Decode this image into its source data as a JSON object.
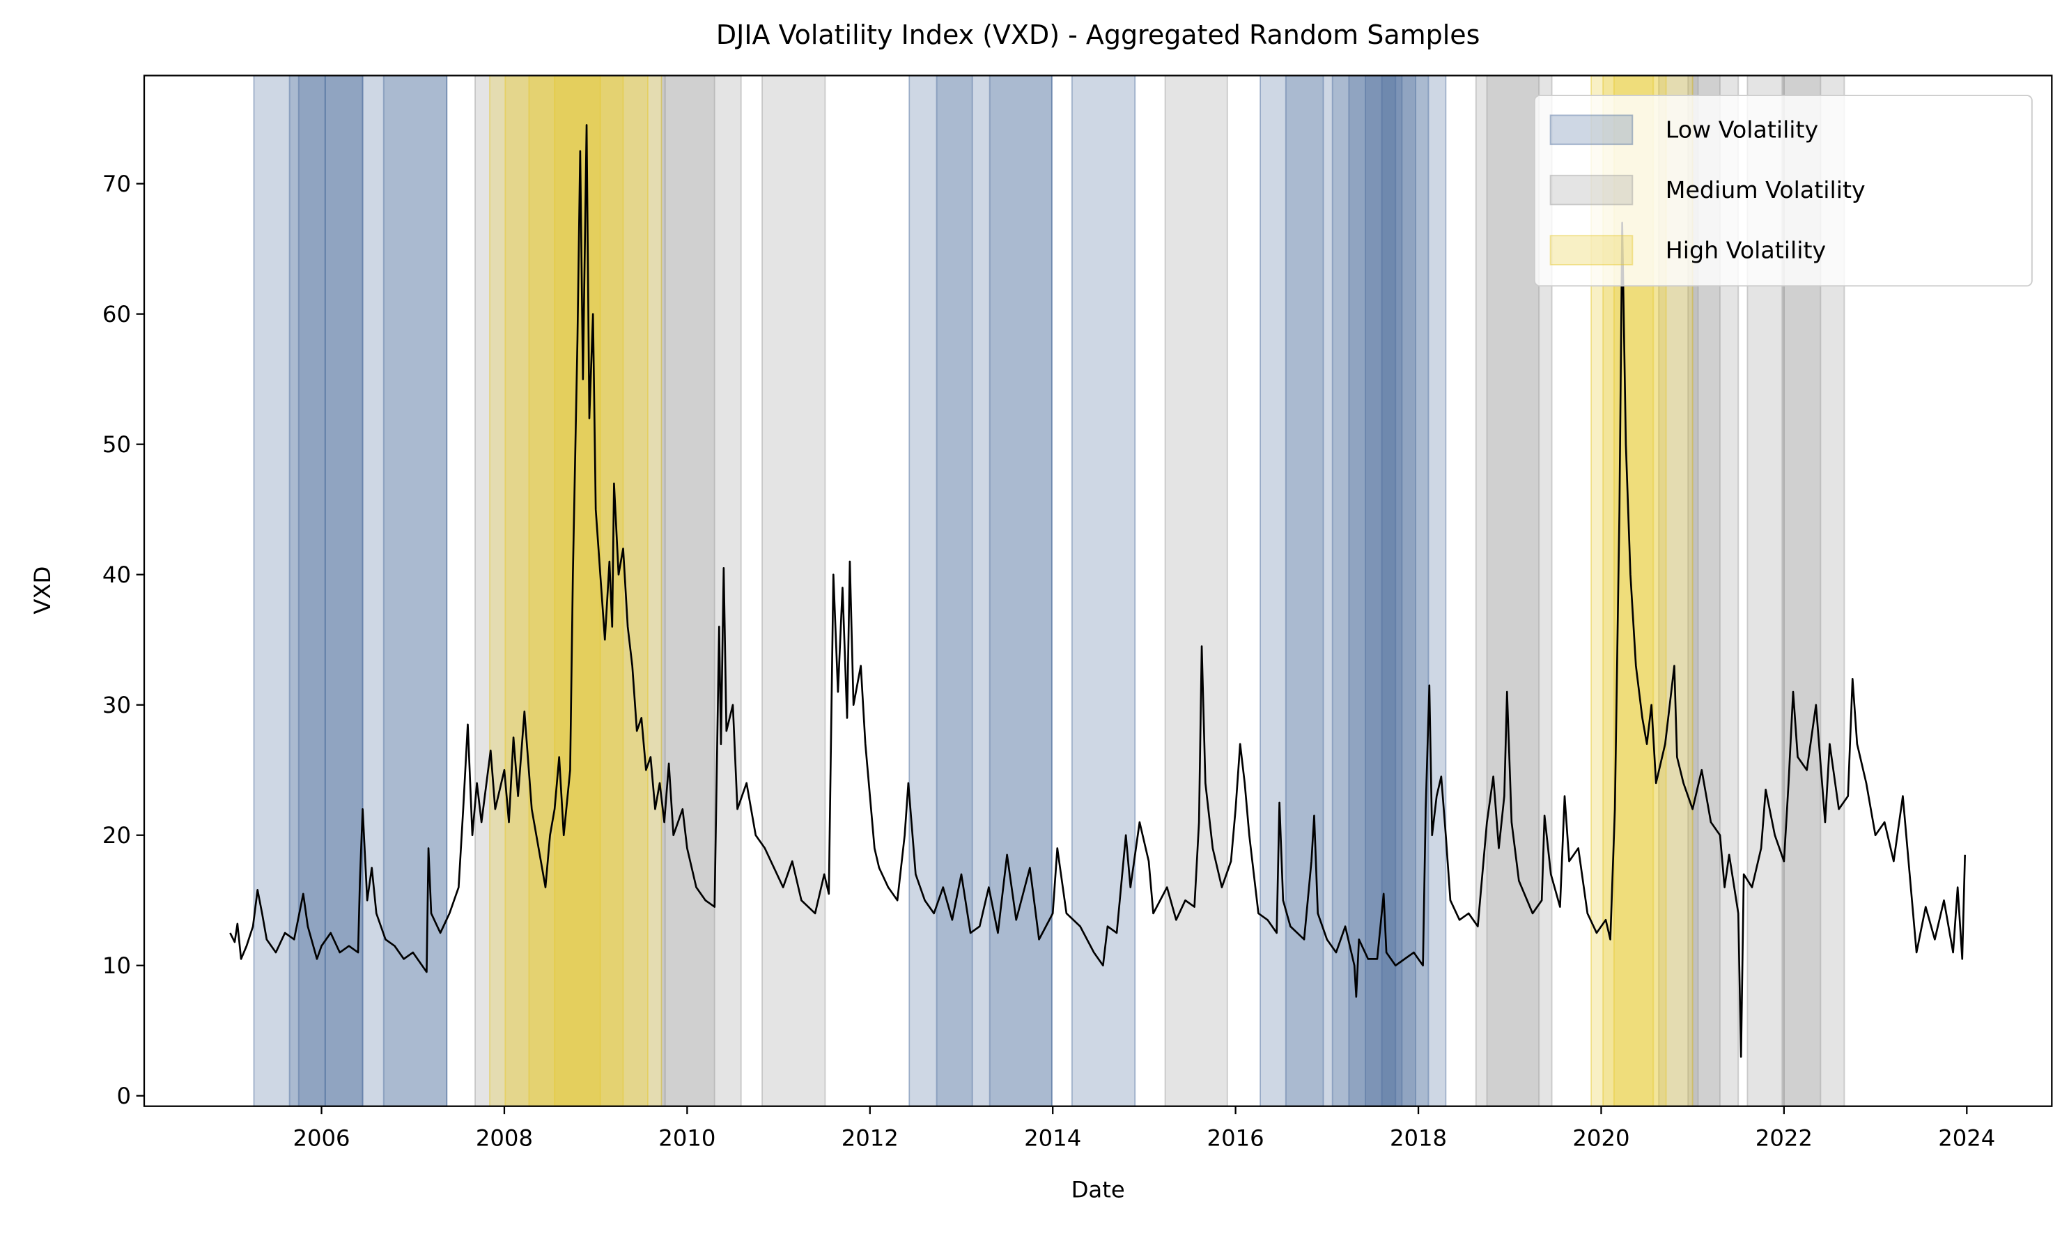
{
  "chart_data": {
    "type": "line",
    "title": "DJIA Volatility Index (VXD) - Aggregated Random Samples",
    "xlabel": "Date",
    "ylabel": "VXD",
    "color": "#000000",
    "x": [
      2005.0,
      2005.05,
      2005.08,
      2005.12,
      2005.18,
      2005.25,
      2005.3,
      2005.35,
      2005.4,
      2005.5,
      2005.6,
      2005.7,
      2005.8,
      2005.85,
      2005.95,
      2006.0,
      2006.1,
      2006.2,
      2006.3,
      2006.4,
      2006.42,
      2006.45,
      2006.5,
      2006.55,
      2006.6,
      2006.7,
      2006.8,
      2006.9,
      2007.0,
      2007.1,
      2007.15,
      2007.17,
      2007.2,
      2007.3,
      2007.4,
      2007.5,
      2007.55,
      2007.6,
      2007.65,
      2007.7,
      2007.75,
      2007.85,
      2007.9,
      2008.0,
      2008.05,
      2008.1,
      2008.15,
      2008.22,
      2008.3,
      2008.4,
      2008.45,
      2008.5,
      2008.55,
      2008.6,
      2008.65,
      2008.72,
      2008.75,
      2008.8,
      2008.83,
      2008.86,
      2008.9,
      2008.93,
      2008.97,
      2009.0,
      2009.05,
      2009.1,
      2009.15,
      2009.18,
      2009.2,
      2009.25,
      2009.3,
      2009.35,
      2009.4,
      2009.45,
      2009.5,
      2009.55,
      2009.6,
      2009.65,
      2009.7,
      2009.75,
      2009.8,
      2009.85,
      2009.95,
      2010.0,
      2010.1,
      2010.2,
      2010.3,
      2010.35,
      2010.37,
      2010.4,
      2010.43,
      2010.5,
      2010.55,
      2010.65,
      2010.75,
      2010.85,
      2010.95,
      2011.05,
      2011.15,
      2011.25,
      2011.4,
      2011.5,
      2011.55,
      2011.6,
      2011.65,
      2011.7,
      2011.75,
      2011.78,
      2011.82,
      2011.9,
      2011.95,
      2012.0,
      2012.05,
      2012.1,
      2012.2,
      2012.3,
      2012.38,
      2012.42,
      2012.5,
      2012.6,
      2012.7,
      2012.8,
      2012.9,
      2013.0,
      2013.1,
      2013.2,
      2013.3,
      2013.4,
      2013.5,
      2013.6,
      2013.75,
      2013.85,
      2014.0,
      2014.05,
      2014.15,
      2014.3,
      2014.45,
      2014.55,
      2014.6,
      2014.7,
      2014.8,
      2014.85,
      2014.95,
      2015.05,
      2015.1,
      2015.25,
      2015.35,
      2015.45,
      2015.55,
      2015.6,
      2015.63,
      2015.67,
      2015.75,
      2015.85,
      2015.95,
      2016.0,
      2016.05,
      2016.1,
      2016.15,
      2016.25,
      2016.35,
      2016.45,
      2016.48,
      2016.52,
      2016.6,
      2016.75,
      2016.83,
      2016.86,
      2016.9,
      2017.0,
      2017.1,
      2017.2,
      2017.3,
      2017.32,
      2017.35,
      2017.45,
      2017.55,
      2017.62,
      2017.65,
      2017.75,
      2017.85,
      2017.95,
      2018.05,
      2018.08,
      2018.12,
      2018.15,
      2018.2,
      2018.25,
      2018.3,
      2018.35,
      2018.45,
      2018.55,
      2018.65,
      2018.75,
      2018.82,
      2018.88,
      2018.94,
      2018.97,
      2019.02,
      2019.1,
      2019.25,
      2019.35,
      2019.38,
      2019.45,
      2019.55,
      2019.6,
      2019.65,
      2019.75,
      2019.85,
      2019.95,
      2020.05,
      2020.1,
      2020.15,
      2020.2,
      2020.23,
      2020.27,
      2020.32,
      2020.38,
      2020.45,
      2020.5,
      2020.55,
      2020.6,
      2020.7,
      2020.8,
      2020.83,
      2020.9,
      2021.0,
      2021.1,
      2021.2,
      2021.3,
      2021.35,
      2021.4,
      2021.5,
      2021.53,
      2021.56,
      2021.65,
      2021.75,
      2021.8,
      2021.9,
      2022.0,
      2022.05,
      2022.1,
      2022.15,
      2022.25,
      2022.35,
      2022.45,
      2022.5,
      2022.6,
      2022.7,
      2022.75,
      2022.8,
      2022.9,
      2023.0,
      2023.1,
      2023.2,
      2023.3,
      2023.4,
      2023.45,
      2023.55,
      2023.65,
      2023.75,
      2023.85,
      2023.9,
      2023.95,
      2023.98
    ],
    "values": [
      12.5,
      11.8,
      13.2,
      10.5,
      11.5,
      13.0,
      15.8,
      14.0,
      12.0,
      11.0,
      12.5,
      12.0,
      15.5,
      13.0,
      10.5,
      11.5,
      12.5,
      11.0,
      11.5,
      11.0,
      16.5,
      22.0,
      15.0,
      17.5,
      14.0,
      12.0,
      11.5,
      10.5,
      11.0,
      10.0,
      9.5,
      19.0,
      14.0,
      12.5,
      14.0,
      16.0,
      22.0,
      28.5,
      20.0,
      24.0,
      21.0,
      26.5,
      22.0,
      25.0,
      21.0,
      27.5,
      23.0,
      29.5,
      22.0,
      18.0,
      16.0,
      20.0,
      22.0,
      26.0,
      20.0,
      25.0,
      40.0,
      58.0,
      72.5,
      55.0,
      74.5,
      52.0,
      60.0,
      45.0,
      40.0,
      35.0,
      41.0,
      36.0,
      47.0,
      40.0,
      42.0,
      36.0,
      33.0,
      28.0,
      29.0,
      25.0,
      26.0,
      22.0,
      24.0,
      21.0,
      25.5,
      20.0,
      22.0,
      19.0,
      16.0,
      15.0,
      14.5,
      36.0,
      27.0,
      40.5,
      28.0,
      30.0,
      22.0,
      24.0,
      20.0,
      19.0,
      17.5,
      16.0,
      18.0,
      15.0,
      14.0,
      17.0,
      15.5,
      40.0,
      31.0,
      39.0,
      29.0,
      41.0,
      30.0,
      33.0,
      27.0,
      23.0,
      19.0,
      17.5,
      16.0,
      15.0,
      20.0,
      24.0,
      17.0,
      15.0,
      14.0,
      16.0,
      13.5,
      17.0,
      12.5,
      13.0,
      16.0,
      12.5,
      18.5,
      13.5,
      17.5,
      12.0,
      14.0,
      19.0,
      14.0,
      13.0,
      11.0,
      10.0,
      13.0,
      12.5,
      20.0,
      16.0,
      21.0,
      18.0,
      14.0,
      16.0,
      13.5,
      15.0,
      14.5,
      21.0,
      34.5,
      24.0,
      19.0,
      16.0,
      18.0,
      22.0,
      27.0,
      24.0,
      20.0,
      14.0,
      13.5,
      12.5,
      22.5,
      15.0,
      13.0,
      12.0,
      18.0,
      21.5,
      14.0,
      12.0,
      11.0,
      13.0,
      10.0,
      7.6,
      12.0,
      10.5,
      10.5,
      15.5,
      11.0,
      10.0,
      10.5,
      11.0,
      10.0,
      22.0,
      31.5,
      20.0,
      23.0,
      24.5,
      20.0,
      15.0,
      13.5,
      14.0,
      13.0,
      21.0,
      24.5,
      19.0,
      23.0,
      31.0,
      21.0,
      16.5,
      14.0,
      15.0,
      21.5,
      17.0,
      14.5,
      23.0,
      18.0,
      19.0,
      14.0,
      12.5,
      13.5,
      12.0,
      22.0,
      45.0,
      67.0,
      50.0,
      40.0,
      33.0,
      29.0,
      27.0,
      30.0,
      24.0,
      27.0,
      33.0,
      26.0,
      24.0,
      22.0,
      25.0,
      21.0,
      20.0,
      16.0,
      18.5,
      14.0,
      3.0,
      17.0,
      16.0,
      19.0,
      23.5,
      20.0,
      18.0,
      24.0,
      31.0,
      26.0,
      25.0,
      30.0,
      21.0,
      27.0,
      22.0,
      23.0,
      32.0,
      27.0,
      24.0,
      20.0,
      21.0,
      18.0,
      23.0,
      15.0,
      11.0,
      14.5,
      12.0,
      15.0,
      11.0,
      16.0,
      10.5,
      18.5
    ],
    "spans": [
      {
        "name": "Low Volatility",
        "color": "#4a6a9c",
        "ranges": [
          [
            2005.26,
            2007.37
          ],
          [
            2005.65,
            2006.45
          ],
          [
            2005.75,
            2006.04
          ],
          [
            2006.04,
            2006.45
          ],
          [
            2006.68,
            2007.37
          ],
          [
            2012.43,
            2013.99
          ],
          [
            2012.73,
            2013.12
          ],
          [
            2013.31,
            2013.99
          ],
          [
            2014.21,
            2014.9
          ],
          [
            2016.27,
            2018.3
          ],
          [
            2016.55,
            2016.96
          ],
          [
            2017.06,
            2018.11
          ],
          [
            2017.24,
            2017.97
          ],
          [
            2017.42,
            2017.82
          ],
          [
            2017.6,
            2017.75
          ]
        ]
      },
      {
        "name": "Medium Volatility",
        "color": "#9a9a9a",
        "ranges": [
          [
            2007.68,
            2009.75
          ],
          [
            2009.72,
            2010.59
          ],
          [
            2009.76,
            2010.3
          ],
          [
            2010.82,
            2011.51
          ],
          [
            2015.23,
            2015.91
          ],
          [
            2018.63,
            2019.46
          ],
          [
            2018.75,
            2019.32
          ],
          [
            2020.63,
            2021.06
          ],
          [
            2020.95,
            2021.5
          ],
          [
            2021.0,
            2021.3
          ],
          [
            2021.6,
            2022.0
          ],
          [
            2021.98,
            2022.66
          ],
          [
            2022.0,
            2022.4
          ]
        ]
      },
      {
        "name": "High Volatility",
        "color": "#e6c82a",
        "ranges": [
          [
            2007.84,
            2009.72
          ],
          [
            2008.01,
            2009.57
          ],
          [
            2008.27,
            2009.3
          ],
          [
            2008.55,
            2009.05
          ],
          [
            2019.89,
            2021.0
          ],
          [
            2020.02,
            2020.71
          ],
          [
            2020.14,
            2020.57
          ]
        ]
      }
    ],
    "span_opacity": 0.27,
    "xlim": [
      2004.06,
      2024.93
    ],
    "ylim": [
      -0.8,
      78.3
    ],
    "xticks": [
      2006,
      2008,
      2010,
      2012,
      2014,
      2016,
      2018,
      2020,
      2022,
      2024
    ],
    "yticks": [
      0,
      10,
      20,
      30,
      40,
      50,
      60,
      70
    ],
    "legend": "upper right"
  }
}
